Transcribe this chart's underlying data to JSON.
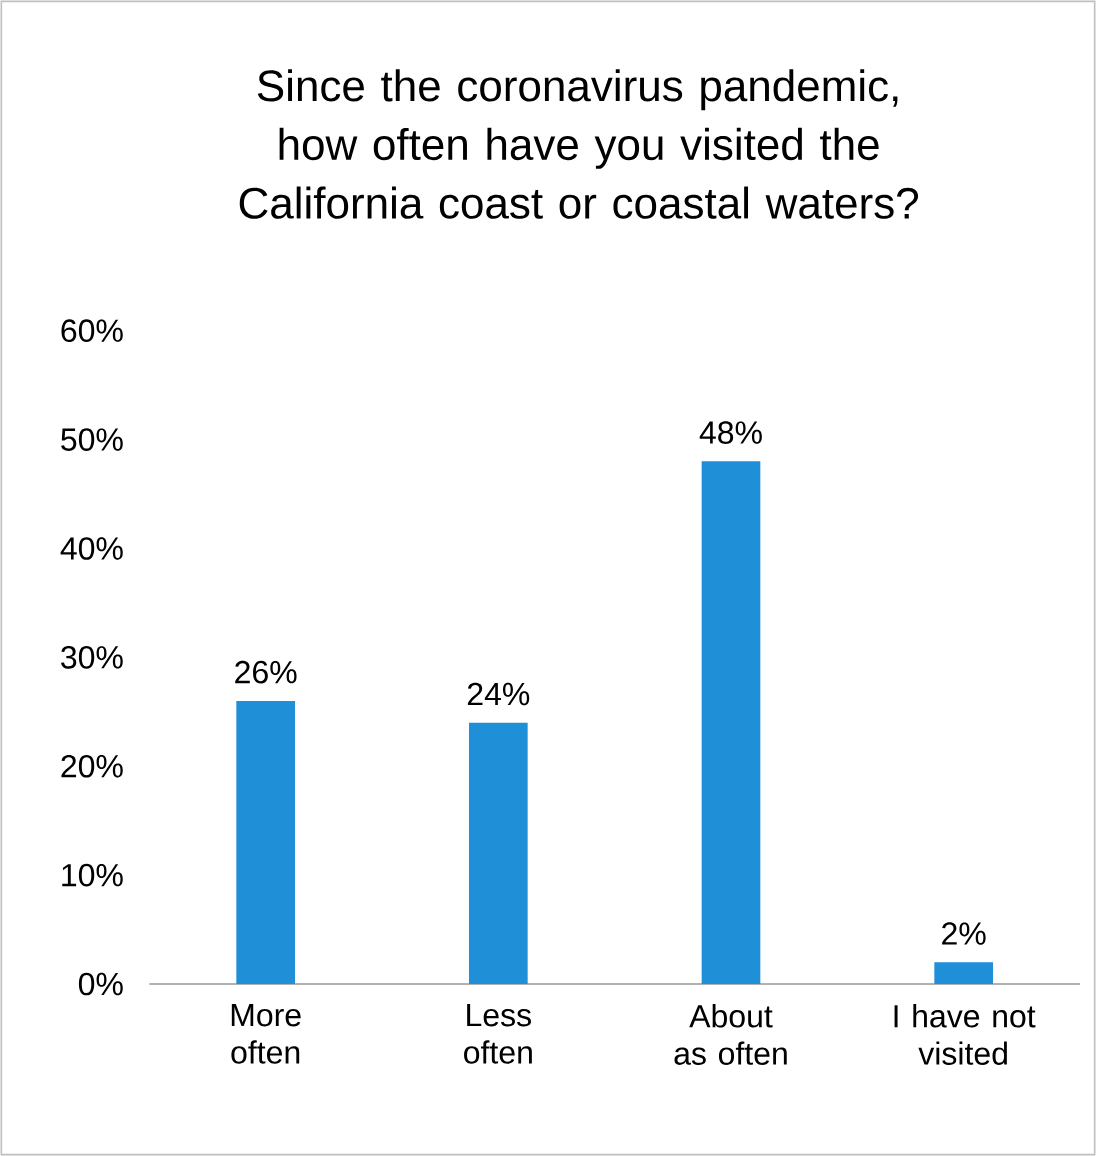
{
  "chart_data": {
    "type": "bar",
    "title": "Since the coronavirus pandemic,\nhow often have you visited the\nCalifornia coast or coastal waters?",
    "categories": [
      "More often",
      "Less often",
      "About as often",
      "I have not visited"
    ],
    "values": [
      26,
      24,
      48,
      2
    ],
    "value_labels": [
      "26%",
      "24%",
      "48%",
      "2%"
    ],
    "yticks": [
      {
        "value": 0,
        "label": "0%"
      },
      {
        "value": 10,
        "label": "10%"
      },
      {
        "value": 20,
        "label": "20%"
      },
      {
        "value": 30,
        "label": "30%"
      },
      {
        "value": 40,
        "label": "40%"
      },
      {
        "value": 50,
        "label": "50%"
      },
      {
        "value": 60,
        "label": "60%"
      }
    ],
    "color": "#1f8fd8",
    "ylim": [
      0,
      60
    ]
  }
}
